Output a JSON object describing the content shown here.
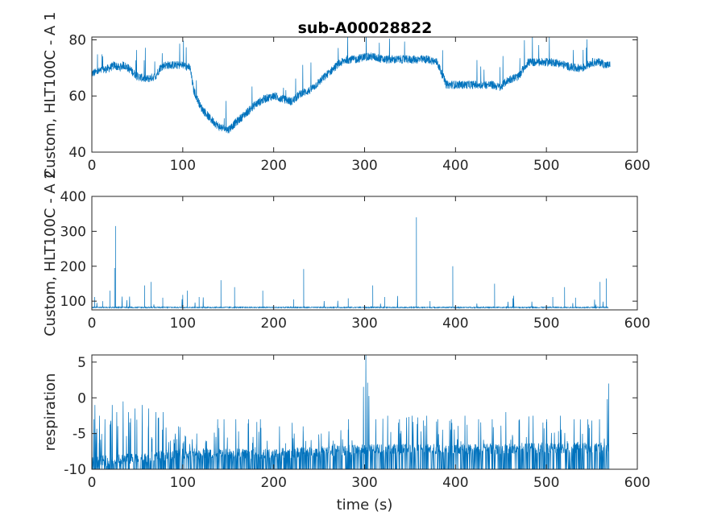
{
  "figure": {
    "title": "sub-A00028822",
    "line_color": "#0072BD"
  },
  "chart_data": [
    {
      "type": "line",
      "title": "sub-A00028822",
      "ylabel": "Custom, HLT100C - A 1",
      "xlabel": "",
      "xlim": [
        0,
        600
      ],
      "ylim": [
        40,
        81
      ],
      "xticks": [
        "0",
        "100",
        "200",
        "300",
        "400",
        "500",
        "600"
      ],
      "yticks": [
        "40",
        "60",
        "80"
      ],
      "grid": false,
      "series": [
        {
          "x": [
            0,
            10,
            20,
            25,
            30,
            35,
            40,
            50,
            60,
            70,
            75,
            80,
            90,
            100,
            108,
            112,
            120,
            130,
            140,
            150,
            160,
            170,
            180,
            190,
            200,
            210,
            220,
            230,
            240,
            250,
            260,
            270,
            280,
            290,
            300,
            310,
            320,
            330,
            340,
            350,
            360,
            370,
            380,
            385,
            390,
            400,
            410,
            420,
            430,
            440,
            450,
            455,
            460,
            470,
            475,
            480,
            490,
            500,
            510,
            520,
            530,
            540,
            550,
            560,
            565,
            570
          ],
          "y": [
            68,
            69,
            70,
            71,
            70,
            71,
            70,
            67,
            66,
            67,
            70,
            71,
            71,
            71,
            70,
            62,
            56,
            52,
            49,
            48,
            51,
            54,
            57,
            59,
            60,
            59,
            58,
            61,
            62,
            65,
            68,
            71,
            73,
            73,
            74,
            74,
            73,
            73,
            73,
            73,
            73,
            73,
            72,
            68,
            64,
            64,
            64,
            64,
            64,
            64,
            63,
            65,
            66,
            67,
            70,
            72,
            72,
            72,
            72,
            71,
            70,
            70,
            72,
            72,
            71,
            71
          ]
        }
      ]
    },
    {
      "type": "line",
      "ylabel": "Custom, HLT100C - A 2",
      "xlabel": "",
      "xlim": [
        0,
        600
      ],
      "ylim": [
        75,
        400
      ],
      "xticks": [
        "0",
        "100",
        "200",
        "300",
        "400",
        "500",
        "600"
      ],
      "yticks": [
        "100",
        "200",
        "300",
        "400"
      ],
      "grid": false,
      "series": [
        {
          "baseline": 82,
          "spikes": [
            [
              3,
              112
            ],
            [
              12,
              100
            ],
            [
              20,
              130
            ],
            [
              25,
              195
            ],
            [
              26,
              315
            ],
            [
              58,
              145
            ],
            [
              65,
              155
            ],
            [
              78,
              110
            ],
            [
              100,
              118
            ],
            [
              105,
              130
            ],
            [
              118,
              112
            ],
            [
              142,
              160
            ],
            [
              157,
              140
            ],
            [
              188,
              130
            ],
            [
              222,
              105
            ],
            [
              233,
              192
            ],
            [
              282,
              108
            ],
            [
              309,
              145
            ],
            [
              322,
              112
            ],
            [
              357,
              340
            ],
            [
              372,
              100
            ],
            [
              397,
              200
            ],
            [
              443,
              150
            ],
            [
              463,
              108
            ],
            [
              507,
              112
            ],
            [
              520,
              140
            ],
            [
              532,
              110
            ],
            [
              559,
              155
            ],
            [
              566,
              165
            ]
          ]
        }
      ]
    },
    {
      "type": "line",
      "ylabel": "respiration",
      "xlabel": "time (s)",
      "xlim": [
        0,
        600
      ],
      "ylim": [
        -10,
        6
      ],
      "xticks": [
        "0",
        "100",
        "200",
        "300",
        "400",
        "500",
        "600"
      ],
      "yticks": [
        "-10",
        "-5",
        "0",
        "5"
      ],
      "grid": false,
      "series": [
        {
          "floor": -10,
          "mid_level": [
            [
              0,
              -9.0
            ],
            [
              100,
              -7.8
            ],
            [
              200,
              -7.8
            ],
            [
              300,
              -7.2
            ],
            [
              400,
              -7.2
            ],
            [
              500,
              -7.0
            ],
            [
              568,
              -7.0
            ]
          ],
          "peaks": [
            [
              3,
              -1
            ],
            [
              8,
              -2.5
            ],
            [
              14,
              -3
            ],
            [
              22,
              -1
            ],
            [
              27,
              -2
            ],
            [
              34,
              -0.5
            ],
            [
              40,
              -2
            ],
            [
              47,
              -1.5
            ],
            [
              55,
              -1
            ],
            [
              62,
              -1.5
            ],
            [
              70,
              -2
            ],
            [
              78,
              -2
            ],
            [
              86,
              -6
            ],
            [
              95,
              -4
            ],
            [
              115,
              -5
            ],
            [
              125,
              -6
            ],
            [
              138,
              -3
            ],
            [
              145,
              -3
            ],
            [
              158,
              -3
            ],
            [
              172,
              -3
            ],
            [
              185,
              -3
            ],
            [
              206,
              -4
            ],
            [
              220,
              -3.5
            ],
            [
              232,
              -4
            ],
            [
              252,
              -5
            ],
            [
              265,
              -6
            ],
            [
              282,
              -3
            ],
            [
              296,
              -7
            ],
            [
              301,
              6
            ],
            [
              312,
              -3
            ],
            [
              325,
              -2.5
            ],
            [
              338,
              -3
            ],
            [
              352,
              -2.5
            ],
            [
              368,
              -2.5
            ],
            [
              380,
              -3
            ],
            [
              395,
              -3
            ],
            [
              410,
              -2.5
            ],
            [
              425,
              -3
            ],
            [
              440,
              -3
            ],
            [
              455,
              -2
            ],
            [
              470,
              -3
            ],
            [
              485,
              -2.5
            ],
            [
              500,
              -3
            ],
            [
              515,
              -2.5
            ],
            [
              530,
              -3
            ],
            [
              545,
              -3
            ],
            [
              558,
              -3
            ],
            [
              568,
              2
            ]
          ]
        }
      ]
    }
  ]
}
